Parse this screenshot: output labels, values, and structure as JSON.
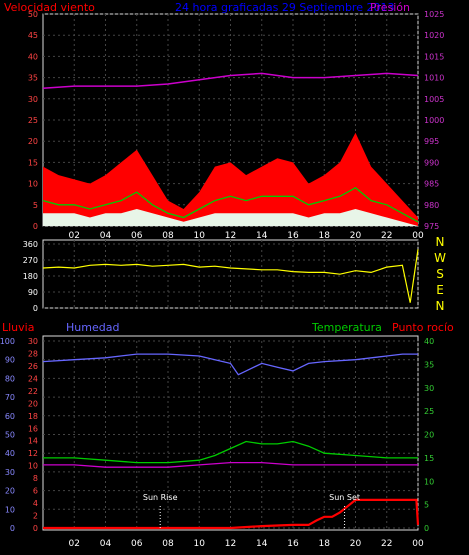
{
  "header": {
    "wind_label": "Velocidad viento",
    "title": "24 hora graficadas  29 Septiembre 2013",
    "pressure_label": "Presión"
  },
  "colors": {
    "background": "#000000",
    "wind_gust": "#ff0000",
    "wind_avg": "#00cc00",
    "wind_mean": "#e8f5e8",
    "pressure": "#cc00cc",
    "direction": "#ffff00",
    "humidity": "#6666ff",
    "temperature": "#00cc00",
    "dewpoint": "#cc00cc",
    "rain": "#ff0000",
    "rain_axis": "#ff4444",
    "humidity_axis": "#8888ff",
    "temp_axis": "#33cc33",
    "pressure_axis": "#cc33cc"
  },
  "chart_data": [
    {
      "type": "area",
      "panel": "wind-pressure",
      "x_ticks": [
        "02",
        "04",
        "06",
        "08",
        "10",
        "12",
        "14",
        "16",
        "18",
        "20",
        "22",
        "00"
      ],
      "left_axis": {
        "label": "Velocidad viento",
        "ylim": [
          0,
          50
        ],
        "ticks": [
          0,
          5,
          10,
          15,
          20,
          25,
          30,
          35,
          40,
          45,
          50
        ]
      },
      "right_axis": {
        "label": "Presión",
        "ylim": [
          975,
          1025
        ],
        "ticks": [
          975,
          980,
          985,
          990,
          995,
          1000,
          1005,
          1010,
          1015,
          1020,
          1025
        ]
      },
      "grid": true,
      "series": [
        {
          "key": "gust",
          "x": [
            0,
            1,
            2,
            3,
            4,
            5,
            6,
            7,
            8,
            9,
            10,
            11,
            12,
            13,
            14,
            15,
            16,
            17,
            18,
            19,
            20,
            21,
            22,
            23,
            24
          ],
          "values": [
            14,
            12,
            11,
            10,
            12,
            15,
            18,
            12,
            6,
            4,
            8,
            14,
            15,
            12,
            14,
            16,
            15,
            10,
            12,
            15,
            22,
            14,
            10,
            6,
            2
          ]
        },
        {
          "key": "avg",
          "x": [
            0,
            1,
            2,
            3,
            4,
            5,
            6,
            7,
            8,
            9,
            10,
            11,
            12,
            13,
            14,
            15,
            16,
            17,
            18,
            19,
            20,
            21,
            22,
            23,
            24
          ],
          "values": [
            6,
            5,
            5,
            4,
            5,
            6,
            8,
            5,
            3,
            2,
            4,
            6,
            7,
            6,
            7,
            7,
            7,
            5,
            6,
            7,
            9,
            6,
            5,
            3,
            1
          ]
        },
        {
          "key": "mean",
          "x": [
            0,
            1,
            2,
            3,
            4,
            5,
            6,
            7,
            8,
            9,
            10,
            11,
            12,
            13,
            14,
            15,
            16,
            17,
            18,
            19,
            20,
            21,
            22,
            23,
            24
          ],
          "values": [
            3,
            3,
            3,
            2,
            3,
            3,
            4,
            3,
            2,
            1,
            2,
            3,
            3,
            3,
            3,
            3,
            3,
            2,
            3,
            3,
            4,
            3,
            2,
            1,
            0
          ]
        },
        {
          "key": "pressure",
          "x": [
            0,
            2,
            4,
            6,
            8,
            10,
            12,
            14,
            16,
            18,
            20,
            22,
            24
          ],
          "values": [
            1007.5,
            1008,
            1008,
            1008,
            1008.5,
            1009.5,
            1010.5,
            1011,
            1010,
            1010,
            1010.5,
            1011,
            1010.5
          ]
        }
      ]
    },
    {
      "type": "line",
      "panel": "wind-direction",
      "x_ticks": [
        "02",
        "04",
        "06",
        "08",
        "10",
        "12",
        "14",
        "16",
        "18",
        "20",
        "22",
        "00"
      ],
      "left_axis": {
        "ylim": [
          0,
          360
        ],
        "ticks": [
          0,
          90,
          180,
          270,
          360
        ]
      },
      "right_labels": [
        "N",
        "W",
        "S",
        "E",
        "N"
      ],
      "grid": true,
      "series": [
        {
          "key": "direction",
          "x": [
            0,
            1,
            2,
            3,
            4,
            5,
            6,
            7,
            8,
            9,
            10,
            11,
            12,
            13,
            14,
            15,
            16,
            17,
            18,
            19,
            20,
            21,
            22,
            23,
            23.5,
            24
          ],
          "values": [
            225,
            230,
            225,
            240,
            245,
            240,
            245,
            235,
            240,
            245,
            230,
            235,
            225,
            220,
            215,
            215,
            205,
            200,
            200,
            190,
            210,
            200,
            230,
            240,
            30,
            330
          ]
        }
      ]
    },
    {
      "type": "line",
      "panel": "humidity-temperature-rain",
      "x_ticks": [
        "02",
        "04",
        "06",
        "08",
        "10",
        "12",
        "14",
        "16",
        "18",
        "20",
        "22",
        "00"
      ],
      "rain_axis": {
        "label": "Lluvia",
        "ylim": [
          0,
          30
        ],
        "ticks": [
          0,
          2,
          4,
          6,
          8,
          10,
          12,
          14,
          16,
          18,
          20,
          22,
          24,
          26,
          28,
          30
        ]
      },
      "humidity_axis": {
        "label": "Humedad",
        "ylim": [
          0,
          100
        ],
        "ticks": [
          0,
          10,
          20,
          30,
          40,
          50,
          60,
          70,
          80,
          90,
          100
        ]
      },
      "temp_axis": {
        "label": "Temperatura",
        "ylim": [
          0,
          40
        ],
        "ticks": [
          0,
          5,
          10,
          15,
          20,
          25,
          30,
          35,
          40
        ]
      },
      "right_label": "Punto rocío",
      "annotations": [
        {
          "label": "Sun Rise",
          "x": 7.5
        },
        {
          "label": "Sun Set",
          "x": 19.3
        }
      ],
      "grid": true,
      "series": [
        {
          "key": "humidity",
          "x": [
            0,
            2,
            4,
            6,
            8,
            10,
            11,
            12,
            12.5,
            13,
            14,
            15,
            16,
            17,
            18,
            20,
            22,
            23,
            24
          ],
          "values": [
            89,
            90,
            91,
            93,
            93,
            92,
            90,
            88,
            82,
            84,
            88,
            86,
            84,
            88,
            89,
            90,
            92,
            93,
            93
          ]
        },
        {
          "key": "temperature",
          "x": [
            0,
            2,
            4,
            6,
            8,
            10,
            11,
            12,
            13,
            14,
            15,
            16,
            17,
            18,
            20,
            22,
            24
          ],
          "values": [
            15,
            15,
            14.5,
            14,
            14,
            14.5,
            15.5,
            17,
            18.5,
            18,
            18,
            18.5,
            17.5,
            16,
            15.5,
            15,
            15
          ]
        },
        {
          "key": "dewpoint",
          "x": [
            0,
            2,
            4,
            6,
            8,
            10,
            12,
            14,
            16,
            18,
            20,
            22,
            24
          ],
          "values": [
            13.5,
            13.5,
            13,
            13,
            13,
            13.5,
            14,
            14,
            13.5,
            13.5,
            13.5,
            13.5,
            13.5
          ]
        },
        {
          "key": "rain",
          "x": [
            0,
            10,
            12,
            14,
            16,
            17,
            17.5,
            18,
            18.5,
            19,
            19.5,
            20,
            21,
            22,
            23,
            23.9,
            24
          ],
          "values": [
            0,
            0,
            0,
            0.3,
            0.5,
            0.5,
            1.2,
            1.8,
            1.8,
            2.5,
            3.5,
            4.5,
            4.5,
            4.5,
            4.5,
            4.5,
            0.5
          ]
        }
      ]
    }
  ]
}
